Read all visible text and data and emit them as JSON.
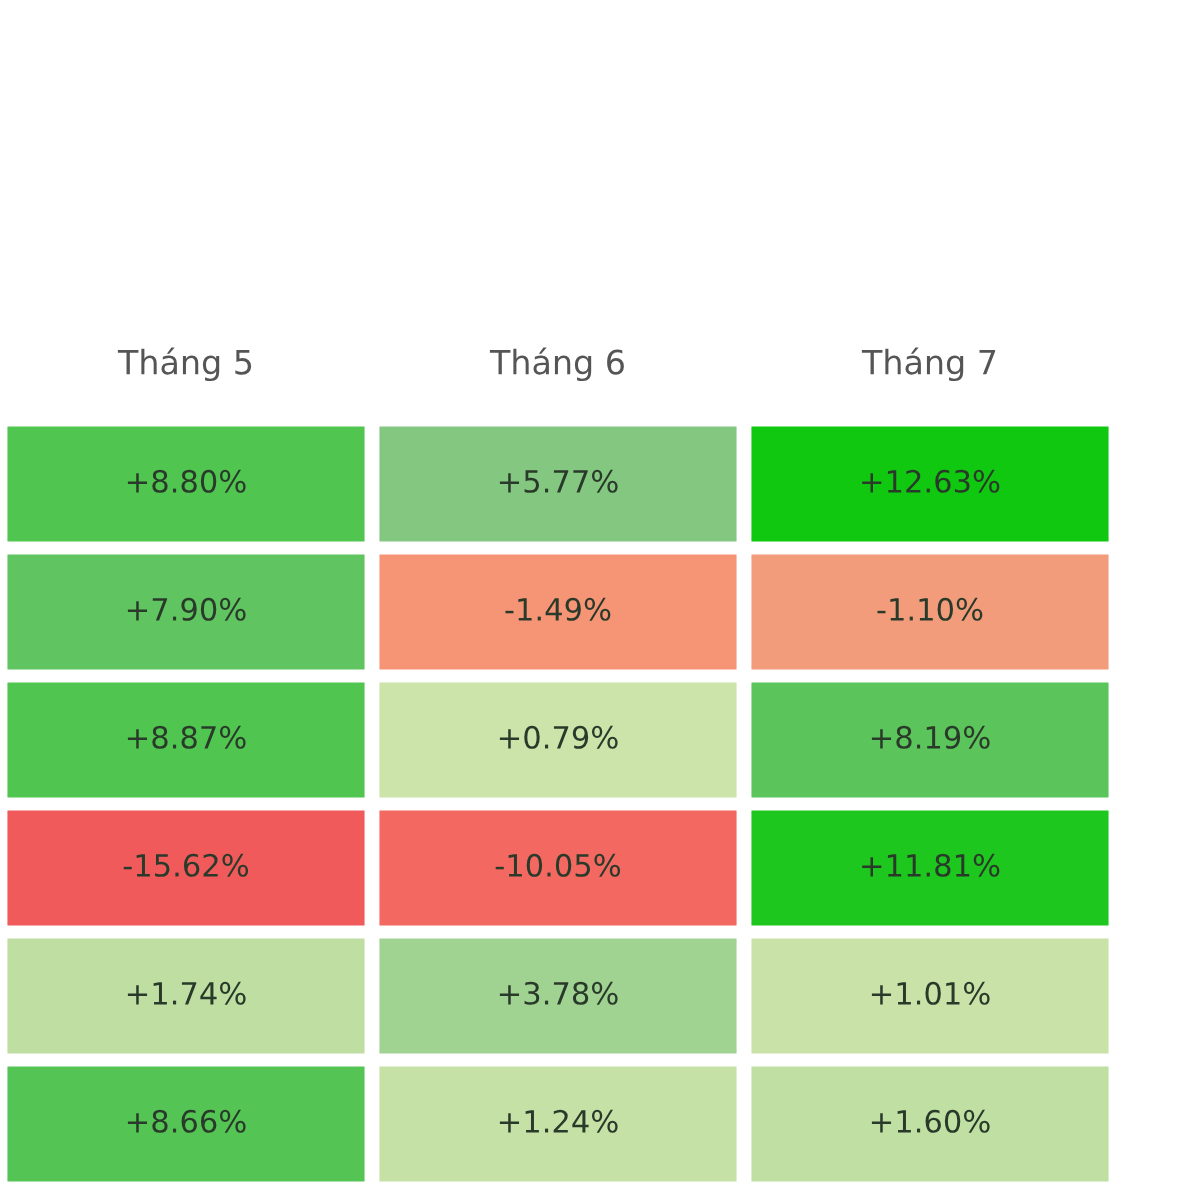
{
  "chart_data": {
    "type": "heatmap",
    "categories": [
      "Tháng 5",
      "Tháng 6",
      "Tháng 7"
    ],
    "y_categories": [
      null,
      null,
      null,
      null,
      null,
      null
    ],
    "cells": [
      [
        8.8,
        5.77,
        12.63
      ],
      [
        7.9,
        -1.49,
        -1.1
      ],
      [
        8.87,
        0.79,
        8.19
      ],
      [
        -15.62,
        -10.05,
        11.81
      ],
      [
        1.74,
        3.78,
        1.01
      ],
      [
        8.66,
        1.24,
        1.6
      ]
    ],
    "cell_labels": [
      [
        "+8.80%",
        "+5.77%",
        "+12.63%"
      ],
      [
        "+7.90%",
        "-1.49%",
        "-1.10%"
      ],
      [
        "+8.87%",
        "+0.79%",
        "+8.19%"
      ],
      [
        "-15.62%",
        "-10.05%",
        "+11.81%"
      ],
      [
        "+1.74%",
        "+3.78%",
        "+1.01%"
      ],
      [
        "+8.66%",
        "+1.24%",
        "+1.60%"
      ]
    ]
  }
}
